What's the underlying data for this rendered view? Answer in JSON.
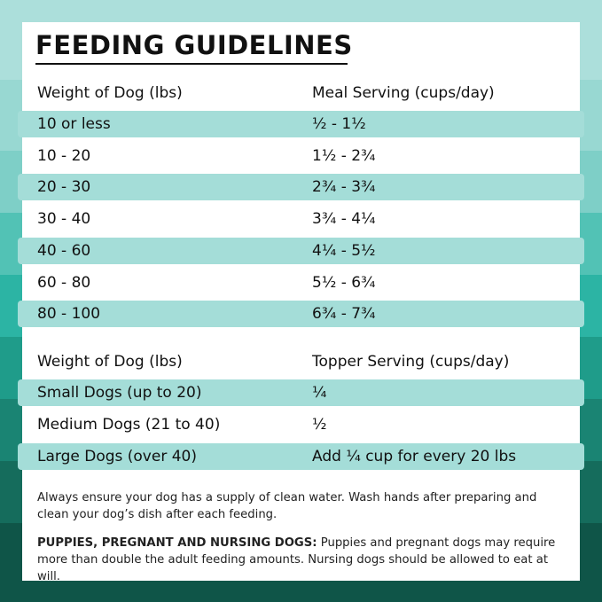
{
  "header": {
    "title": "FEEDING GUIDELINES"
  },
  "table1": {
    "headers": [
      "Weight of Dog (lbs)",
      "Meal Serving (cups/day)"
    ],
    "rows": [
      [
        "10 or less",
        "½ - 1½"
      ],
      [
        "10 - 20",
        "1½ - 2¾"
      ],
      [
        "20 - 30",
        "2¾ - 3¾"
      ],
      [
        "30 - 40",
        "3¾ - 4¼"
      ],
      [
        "40 - 60",
        "4¼ - 5½"
      ],
      [
        "60 - 80",
        "5½ - 6¾"
      ],
      [
        "80 - 100",
        "6¾ - 7¾"
      ]
    ]
  },
  "table2": {
    "headers": [
      "Weight of Dog (lbs)",
      "Topper Serving (cups/day)"
    ],
    "rows": [
      [
        "Small Dogs (up to 20)",
        "¼"
      ],
      [
        "Medium Dogs (21 to 40)",
        "½"
      ],
      [
        "Large Dogs (over 40)",
        "Add ¼ cup for every 20 lbs"
      ]
    ]
  },
  "notes": {
    "paragraph": "Always ensure your dog has a supply of clean water. Wash hands after preparing and clean your dog’s dish after each feeding.",
    "label": "PUPPIES, PREGNANT AND NURSING DOGS:",
    "text": "Puppies and pregnant dogs may require more than double the adult feeding amounts. Nursing dogs should be allowed to eat at will."
  }
}
